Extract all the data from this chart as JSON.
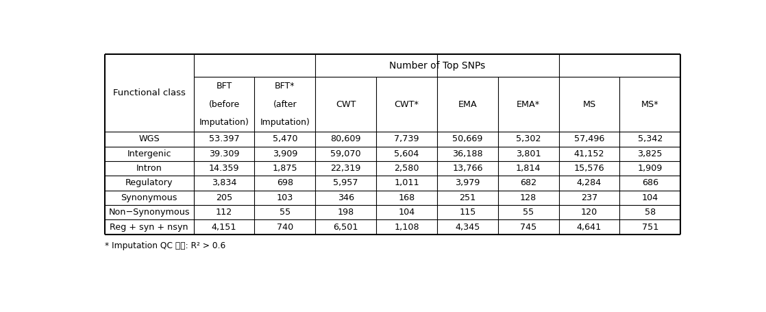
{
  "title": "Number of Top SNPs",
  "row_labels": [
    "WGS",
    "Intergenic",
    "Intron",
    "Regulatory",
    "Synonymous",
    "Non−Synonymous",
    "Reg + syn + nsyn"
  ],
  "col_headers": [
    [
      "BFT",
      "(before",
      "Imputation)"
    ],
    [
      "BFT*",
      "(after",
      "Imputation)"
    ],
    [
      "CWT",
      "",
      ""
    ],
    [
      "CWT*",
      "",
      ""
    ],
    [
      "EMA",
      "",
      ""
    ],
    [
      "EMA*",
      "",
      ""
    ],
    [
      "MS",
      "",
      ""
    ],
    [
      "MS*",
      "",
      ""
    ]
  ],
  "data": [
    [
      "53.397",
      "5,470",
      "80,609",
      "7,739",
      "50,669",
      "5,302",
      "57,496",
      "5,342"
    ],
    [
      "39.309",
      "3,909",
      "59,070",
      "5,604",
      "36,188",
      "3,801",
      "41,152",
      "3,825"
    ],
    [
      "14.359",
      "1,875",
      "22,319",
      "2,580",
      "13,766",
      "1,814",
      "15,576",
      "1,909"
    ],
    [
      "3,834",
      "698",
      "5,957",
      "1,011",
      "3,979",
      "682",
      "4,284",
      "686"
    ],
    [
      "205",
      "103",
      "346",
      "168",
      "251",
      "128",
      "237",
      "104"
    ],
    [
      "112",
      "55",
      "198",
      "104",
      "115",
      "55",
      "120",
      "58"
    ],
    [
      "4,151",
      "740",
      "6,501",
      "1,108",
      "4,345",
      "745",
      "4,641",
      "751"
    ]
  ],
  "footnote": "* Imputation QC 수행: R² > 0.6",
  "background_color": "#ffffff",
  "border_color": "#000000",
  "text_color": "#000000"
}
